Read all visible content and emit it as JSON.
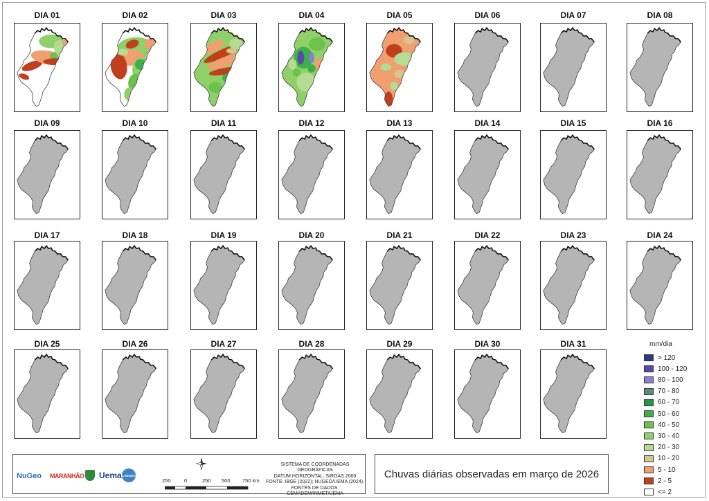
{
  "days": [
    {
      "label": "DIA 01",
      "map": "partial"
    },
    {
      "label": "DIA 02",
      "map": "partial"
    },
    {
      "label": "DIA 03",
      "map": "full-wet"
    },
    {
      "label": "DIA 04",
      "map": "full-wet"
    },
    {
      "label": "DIA 05",
      "map": "full-dry"
    },
    {
      "label": "DIA 06",
      "map": "nodata"
    },
    {
      "label": "DIA 07",
      "map": "nodata"
    },
    {
      "label": "DIA 08",
      "map": "nodata"
    },
    {
      "label": "DIA 09",
      "map": "nodata"
    },
    {
      "label": "DIA 10",
      "map": "nodata"
    },
    {
      "label": "DIA 11",
      "map": "nodata"
    },
    {
      "label": "DIA 12",
      "map": "nodata"
    },
    {
      "label": "DIA 13",
      "map": "nodata"
    },
    {
      "label": "DIA 14",
      "map": "nodata"
    },
    {
      "label": "DIA 15",
      "map": "nodata"
    },
    {
      "label": "DIA 16",
      "map": "nodata"
    },
    {
      "label": "DIA 17",
      "map": "nodata"
    },
    {
      "label": "DIA 18",
      "map": "nodata"
    },
    {
      "label": "DIA 19",
      "map": "nodata"
    },
    {
      "label": "DIA 20",
      "map": "nodata"
    },
    {
      "label": "DIA 21",
      "map": "nodata"
    },
    {
      "label": "DIA 22",
      "map": "nodata"
    },
    {
      "label": "DIA 23",
      "map": "nodata"
    },
    {
      "label": "DIA 24",
      "map": "nodata"
    },
    {
      "label": "DIA 25",
      "map": "nodata"
    },
    {
      "label": "DIA 26",
      "map": "nodata"
    },
    {
      "label": "DIA 27",
      "map": "nodata"
    },
    {
      "label": "DIA 28",
      "map": "nodata"
    },
    {
      "label": "DIA 29",
      "map": "nodata"
    },
    {
      "label": "DIA 30",
      "map": "nodata"
    },
    {
      "label": "DIA 31",
      "map": "nodata"
    }
  ],
  "legend": {
    "title": "mm/dia",
    "classes": [
      {
        "label": "> 120",
        "color": "#2b3a7a"
      },
      {
        "label": "100 - 120",
        "color": "#5a48a8"
      },
      {
        "label": "80 - 100",
        "color": "#8a7fd0"
      },
      {
        "label": "70 - 80",
        "color": "#5f8a7a"
      },
      {
        "label": "60 - 70",
        "color": "#1f9a4a"
      },
      {
        "label": "50 - 60",
        "color": "#3cb04a"
      },
      {
        "label": "40 - 50",
        "color": "#6cc24a"
      },
      {
        "label": "30 - 40",
        "color": "#8fd068"
      },
      {
        "label": "20 - 30",
        "color": "#b6dc94"
      },
      {
        "label": "10 - 20",
        "color": "#d8c48c"
      },
      {
        "label": "5 - 10",
        "color": "#f0a070"
      },
      {
        "label": "2 - 5",
        "color": "#c0401e"
      },
      {
        "label": "<= 2",
        "color": "#ffffff"
      }
    ]
  },
  "colors": {
    "nodata": "#b5b5b5",
    "outline": "#3a3a3a"
  },
  "credits": [
    "SISTEMA DE COORDENADAS GEOGRÁFICAS",
    "DATUM HORIZONTAL: SIRGAS 2000",
    "FONTE: IBGE (2022); NUGEO/UEMA (2024).",
    "FONTES DE DADOS: CEMADEM/INMET/UEMA"
  ],
  "scale": {
    "ticks": [
      "250",
      "0",
      "250",
      "500",
      "750 km"
    ]
  },
  "title": "Chuvas diárias observadas em março de 2026",
  "logos": {
    "nugeo": "NuGeo",
    "maranhao": "MARANHÃO",
    "uema": "Uema",
    "labgeo": "LABGEO"
  }
}
